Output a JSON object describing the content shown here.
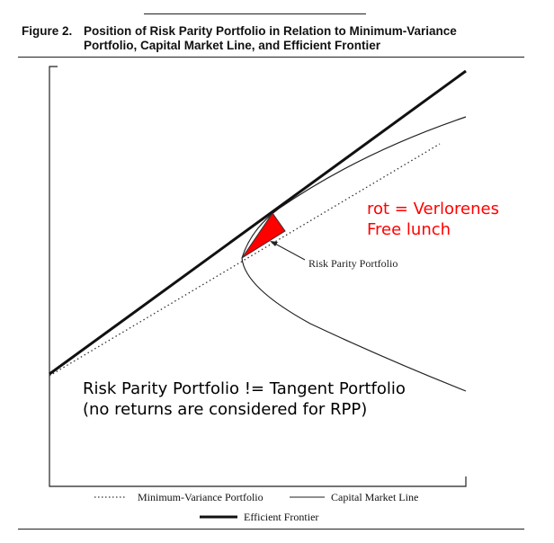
{
  "figure": {
    "number": "Figure 2.",
    "title_line1": "Position of Risk Parity Portfolio in Relation to Minimum-Variance",
    "title_line2": "Portfolio, Capital Market Line, and Efficient Frontier"
  },
  "diagram": {
    "point_label": "Risk Parity Portfolio",
    "highlight_color": "#ff0000",
    "annotation_red": [
      "rot = Verlorenes",
      "Free lunch"
    ],
    "annotation_black": "Risk Parity Portfolio != Tangent Portfolio (no returns are considered for RPP)"
  },
  "legend": {
    "items": [
      {
        "label": "Minimum-Variance Portfolio",
        "style": "dotted"
      },
      {
        "label": "Capital Market Line",
        "style": "thin"
      },
      {
        "label": "Efficient Frontier",
        "style": "thick"
      }
    ]
  }
}
